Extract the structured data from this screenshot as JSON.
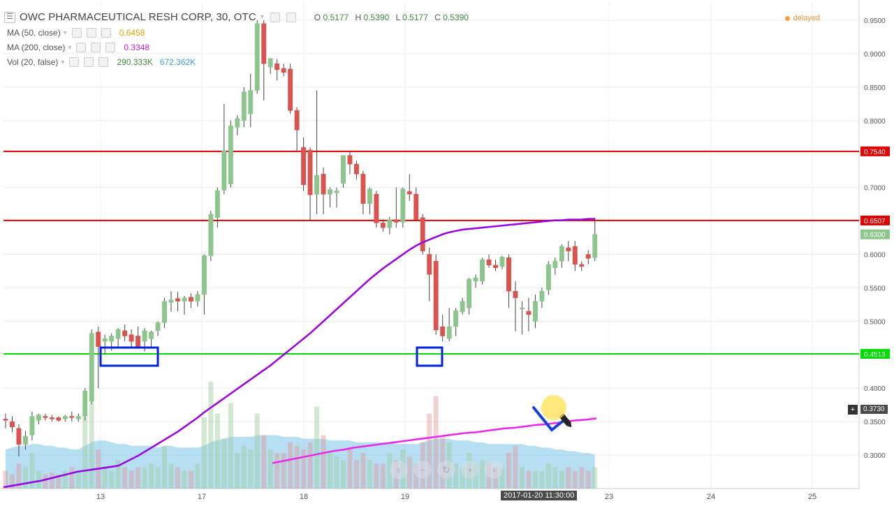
{
  "header": {
    "title": "OWC PHARMACEUTICAL RESH CORP, 30, OTC",
    "ohlc": [
      {
        "label": "O",
        "value": "0.5177"
      },
      {
        "label": "H",
        "value": "0.5390"
      },
      {
        "label": "L",
        "value": "0.5177"
      },
      {
        "label": "C",
        "value": "0.5390"
      }
    ],
    "status": "delayed"
  },
  "indicators": [
    {
      "name": "MA (50, close)",
      "value": "0.6458",
      "color": "#e6a000"
    },
    {
      "name": "MA (200, close)",
      "value": "0.3348",
      "color": "#d020d0"
    },
    {
      "name": "Vol (20, false)",
      "value": "290.333K",
      "value2": "672.362K",
      "color": "#3c8b3c",
      "color2": "#3aa0d8"
    }
  ],
  "crosshair": {
    "time": "2017-01-20 11:30:00",
    "price": "0.3730"
  },
  "nav_icons": [
    "minus-icon",
    "zoom-out-icon",
    "reset-icon",
    "plus-icon",
    "forward-icon"
  ],
  "colors": {
    "up": "#8cc68c",
    "down": "#d9534f",
    "resistance": "#e00000",
    "support": "#00dd00",
    "ma_purple": "#9a00e6",
    "ma_magenta": "#ee22ee",
    "box": "#0022dd",
    "volume_area": "#7cc4ea"
  },
  "chart_data": {
    "type": "candlestick",
    "x_ticks": [
      "13",
      "17",
      "18",
      "19",
      "23",
      "24",
      "25"
    ],
    "y_ticks": [
      "0.9500",
      "0.9000",
      "0.8500",
      "0.8000",
      "0.7000",
      "0.6000",
      "0.5500",
      "0.5000",
      "0.4000",
      "0.3500",
      "0.3000"
    ],
    "ylim": [
      0.25,
      0.975
    ],
    "horizontal_lines": [
      {
        "price": 0.754,
        "label": "0.7540",
        "color": "#e00000"
      },
      {
        "price": 0.6507,
        "label": "0.6507",
        "color": "#e00000"
      },
      {
        "price": 0.4513,
        "label": "0.4513",
        "color": "#00dd00"
      }
    ],
    "last_price": {
      "price": 0.63,
      "label": "0.6300"
    },
    "candles": [
      {
        "o": 0.354,
        "h": 0.362,
        "l": 0.34,
        "c": 0.352
      },
      {
        "o": 0.35,
        "h": 0.358,
        "l": 0.334,
        "c": 0.342
      },
      {
        "o": 0.34,
        "h": 0.346,
        "l": 0.298,
        "c": 0.316
      },
      {
        "o": 0.316,
        "h": 0.336,
        "l": 0.308,
        "c": 0.328
      },
      {
        "o": 0.33,
        "h": 0.365,
        "l": 0.322,
        "c": 0.358
      },
      {
        "o": 0.352,
        "h": 0.362,
        "l": 0.346,
        "c": 0.36
      },
      {
        "o": 0.358,
        "h": 0.362,
        "l": 0.352,
        "c": 0.356
      },
      {
        "o": 0.356,
        "h": 0.36,
        "l": 0.35,
        "c": 0.354
      },
      {
        "o": 0.356,
        "h": 0.358,
        "l": 0.35,
        "c": 0.352
      },
      {
        "o": 0.354,
        "h": 0.36,
        "l": 0.35,
        "c": 0.358
      },
      {
        "o": 0.358,
        "h": 0.365,
        "l": 0.35,
        "c": 0.356
      },
      {
        "o": 0.354,
        "h": 0.362,
        "l": 0.35,
        "c": 0.358
      },
      {
        "o": 0.358,
        "h": 0.4,
        "l": 0.352,
        "c": 0.396
      },
      {
        "o": 0.38,
        "h": 0.488,
        "l": 0.376,
        "c": 0.482
      },
      {
        "o": 0.484,
        "h": 0.492,
        "l": 0.4,
        "c": 0.462
      },
      {
        "o": 0.47,
        "h": 0.48,
        "l": 0.45,
        "c": 0.474
      },
      {
        "o": 0.47,
        "h": 0.482,
        "l": 0.456,
        "c": 0.478
      },
      {
        "o": 0.474,
        "h": 0.49,
        "l": 0.462,
        "c": 0.488
      },
      {
        "o": 0.486,
        "h": 0.495,
        "l": 0.47,
        "c": 0.478
      },
      {
        "o": 0.48,
        "h": 0.488,
        "l": 0.462,
        "c": 0.47
      },
      {
        "o": 0.478,
        "h": 0.492,
        "l": 0.46,
        "c": 0.462
      },
      {
        "o": 0.47,
        "h": 0.49,
        "l": 0.455,
        "c": 0.486
      },
      {
        "o": 0.474,
        "h": 0.486,
        "l": 0.46,
        "c": 0.484
      },
      {
        "o": 0.486,
        "h": 0.5,
        "l": 0.478,
        "c": 0.498
      },
      {
        "o": 0.498,
        "h": 0.535,
        "l": 0.49,
        "c": 0.53
      },
      {
        "o": 0.528,
        "h": 0.545,
        "l": 0.514,
        "c": 0.532
      },
      {
        "o": 0.534,
        "h": 0.544,
        "l": 0.515,
        "c": 0.53
      },
      {
        "o": 0.53,
        "h": 0.538,
        "l": 0.51,
        "c": 0.535
      },
      {
        "o": 0.536,
        "h": 0.542,
        "l": 0.52,
        "c": 0.53
      },
      {
        "o": 0.53,
        "h": 0.545,
        "l": 0.522,
        "c": 0.54
      },
      {
        "o": 0.54,
        "h": 0.6,
        "l": 0.51,
        "c": 0.598
      },
      {
        "o": 0.598,
        "h": 0.665,
        "l": 0.59,
        "c": 0.66
      },
      {
        "o": 0.655,
        "h": 0.7,
        "l": 0.64,
        "c": 0.695
      },
      {
        "o": 0.696,
        "h": 0.825,
        "l": 0.69,
        "c": 0.755
      },
      {
        "o": 0.705,
        "h": 0.8,
        "l": 0.7,
        "c": 0.792
      },
      {
        "o": 0.79,
        "h": 0.808,
        "l": 0.778,
        "c": 0.803
      },
      {
        "o": 0.8,
        "h": 0.85,
        "l": 0.79,
        "c": 0.843
      },
      {
        "o": 0.81,
        "h": 0.87,
        "l": 0.79,
        "c": 0.845
      },
      {
        "o": 0.845,
        "h": 0.95,
        "l": 0.84,
        "c": 0.945
      },
      {
        "o": 0.945,
        "h": 0.95,
        "l": 0.83,
        "c": 0.885
      },
      {
        "o": 0.88,
        "h": 0.888,
        "l": 0.87,
        "c": 0.893
      },
      {
        "o": 0.885,
        "h": 0.892,
        "l": 0.86,
        "c": 0.876
      },
      {
        "o": 0.878,
        "h": 0.885,
        "l": 0.866,
        "c": 0.872
      },
      {
        "o": 0.877,
        "h": 0.885,
        "l": 0.81,
        "c": 0.815
      },
      {
        "o": 0.815,
        "h": 0.82,
        "l": 0.755,
        "c": 0.786
      },
      {
        "o": 0.76,
        "h": 0.775,
        "l": 0.695,
        "c": 0.704
      },
      {
        "o": 0.756,
        "h": 0.76,
        "l": 0.65,
        "c": 0.689
      },
      {
        "o": 0.69,
        "h": 0.845,
        "l": 0.66,
        "c": 0.718
      },
      {
        "o": 0.72,
        "h": 0.73,
        "l": 0.66,
        "c": 0.69
      },
      {
        "o": 0.69,
        "h": 0.7,
        "l": 0.67,
        "c": 0.697
      },
      {
        "o": 0.692,
        "h": 0.7,
        "l": 0.67,
        "c": 0.695
      },
      {
        "o": 0.706,
        "h": 0.745,
        "l": 0.7,
        "c": 0.748
      },
      {
        "o": 0.748,
        "h": 0.755,
        "l": 0.72,
        "c": 0.735
      },
      {
        "o": 0.735,
        "h": 0.74,
        "l": 0.712,
        "c": 0.72
      },
      {
        "o": 0.72,
        "h": 0.725,
        "l": 0.66,
        "c": 0.676
      },
      {
        "o": 0.676,
        "h": 0.7,
        "l": 0.66,
        "c": 0.698
      },
      {
        "o": 0.69,
        "h": 0.695,
        "l": 0.64,
        "c": 0.647
      },
      {
        "o": 0.647,
        "h": 0.652,
        "l": 0.634,
        "c": 0.64
      },
      {
        "o": 0.64,
        "h": 0.656,
        "l": 0.63,
        "c": 0.652
      },
      {
        "o": 0.652,
        "h": 0.7,
        "l": 0.64,
        "c": 0.648
      },
      {
        "o": 0.648,
        "h": 0.7,
        "l": 0.64,
        "c": 0.698
      },
      {
        "o": 0.694,
        "h": 0.72,
        "l": 0.68,
        "c": 0.69
      },
      {
        "o": 0.69,
        "h": 0.7,
        "l": 0.65,
        "c": 0.652
      },
      {
        "o": 0.655,
        "h": 0.66,
        "l": 0.6,
        "c": 0.605
      },
      {
        "o": 0.6,
        "h": 0.61,
        "l": 0.53,
        "c": 0.57
      },
      {
        "o": 0.59,
        "h": 0.6,
        "l": 0.48,
        "c": 0.487
      },
      {
        "o": 0.492,
        "h": 0.51,
        "l": 0.47,
        "c": 0.478
      },
      {
        "o": 0.474,
        "h": 0.52,
        "l": 0.47,
        "c": 0.492
      },
      {
        "o": 0.492,
        "h": 0.52,
        "l": 0.478,
        "c": 0.516
      },
      {
        "o": 0.514,
        "h": 0.535,
        "l": 0.51,
        "c": 0.53
      },
      {
        "o": 0.52,
        "h": 0.565,
        "l": 0.51,
        "c": 0.563
      },
      {
        "o": 0.56,
        "h": 0.57,
        "l": 0.55,
        "c": 0.565
      },
      {
        "o": 0.56,
        "h": 0.595,
        "l": 0.555,
        "c": 0.592
      },
      {
        "o": 0.592,
        "h": 0.6,
        "l": 0.58,
        "c": 0.584
      },
      {
        "o": 0.584,
        "h": 0.592,
        "l": 0.575,
        "c": 0.58
      },
      {
        "o": 0.582,
        "h": 0.598,
        "l": 0.578,
        "c": 0.596
      },
      {
        "o": 0.595,
        "h": 0.6,
        "l": 0.52,
        "c": 0.545
      },
      {
        "o": 0.545,
        "h": 0.56,
        "l": 0.485,
        "c": 0.535
      },
      {
        "o": 0.52,
        "h": 0.53,
        "l": 0.48,
        "c": 0.52
      },
      {
        "o": 0.515,
        "h": 0.535,
        "l": 0.485,
        "c": 0.51
      },
      {
        "o": 0.5,
        "h": 0.54,
        "l": 0.49,
        "c": 0.53
      },
      {
        "o": 0.53,
        "h": 0.55,
        "l": 0.52,
        "c": 0.545
      },
      {
        "o": 0.547,
        "h": 0.59,
        "l": 0.54,
        "c": 0.585
      },
      {
        "o": 0.58,
        "h": 0.595,
        "l": 0.57,
        "c": 0.59
      },
      {
        "o": 0.59,
        "h": 0.615,
        "l": 0.58,
        "c": 0.612
      },
      {
        "o": 0.61,
        "h": 0.62,
        "l": 0.59,
        "c": 0.605
      },
      {
        "o": 0.612,
        "h": 0.62,
        "l": 0.575,
        "c": 0.585
      },
      {
        "o": 0.585,
        "h": 0.59,
        "l": 0.575,
        "c": 0.582
      },
      {
        "o": 0.6,
        "h": 0.606,
        "l": 0.585,
        "c": 0.594
      },
      {
        "o": 0.595,
        "h": 0.655,
        "l": 0.59,
        "c": 0.63
      }
    ],
    "volume": [
      0.1,
      0.08,
      0.14,
      0.12,
      0.2,
      0.1,
      0.08,
      0.09,
      0.08,
      0.1,
      0.12,
      0.1,
      0.4,
      0.48,
      0.22,
      0.12,
      0.1,
      0.16,
      0.12,
      0.1,
      0.12,
      0.12,
      0.14,
      0.12,
      0.24,
      0.14,
      0.12,
      0.1,
      0.1,
      0.14,
      0.4,
      0.6,
      0.42,
      0.28,
      0.48,
      0.2,
      0.24,
      0.22,
      0.42,
      0.3,
      0.22,
      0.2,
      0.2,
      0.26,
      0.24,
      0.22,
      0.26,
      0.46,
      0.3,
      0.2,
      0.18,
      0.16,
      0.22,
      0.16,
      0.2,
      0.16,
      0.14,
      0.14,
      0.2,
      0.16,
      0.22,
      0.18,
      0.14,
      0.26,
      0.42,
      0.52,
      0.3,
      0.26,
      0.14,
      0.12,
      0.2,
      0.14,
      0.16,
      0.14,
      0.12,
      0.12,
      0.2,
      0.24,
      0.12,
      0.1,
      0.1,
      0.1,
      0.14,
      0.12,
      0.1,
      0.12,
      0.1,
      0.12,
      0.1,
      0.12
    ],
    "volume_avg": [
      0.22,
      0.23,
      0.24,
      0.24,
      0.25,
      0.25,
      0.24,
      0.24,
      0.23,
      0.23,
      0.22,
      0.22,
      0.24,
      0.26,
      0.27,
      0.27,
      0.26,
      0.25,
      0.25,
      0.24,
      0.24,
      0.24,
      0.24,
      0.23,
      0.24,
      0.24,
      0.23,
      0.23,
      0.23,
      0.23,
      0.24,
      0.26,
      0.27,
      0.28,
      0.29,
      0.29,
      0.29,
      0.29,
      0.3,
      0.3,
      0.3,
      0.3,
      0.29,
      0.29,
      0.29,
      0.28,
      0.28,
      0.28,
      0.28,
      0.27,
      0.27,
      0.27,
      0.27,
      0.26,
      0.26,
      0.26,
      0.26,
      0.26,
      0.26,
      0.25,
      0.25,
      0.25,
      0.25,
      0.26,
      0.27,
      0.28,
      0.28,
      0.28,
      0.27,
      0.27,
      0.27,
      0.26,
      0.26,
      0.25,
      0.25,
      0.25,
      0.25,
      0.25,
      0.25,
      0.24,
      0.24,
      0.23,
      0.23,
      0.22,
      0.22,
      0.21,
      0.21,
      0.2,
      0.2,
      0.19
    ],
    "ma50": [
      0.284,
      0.289,
      0.294,
      0.299,
      0.305,
      0.311,
      0.317,
      0.323,
      0.329,
      0.335,
      0.342,
      0.349,
      0.356,
      0.364,
      0.371,
      0.378,
      0.385,
      0.392,
      0.399,
      0.406,
      0.413,
      0.42,
      0.427,
      0.434,
      0.442,
      0.45,
      0.458,
      0.466,
      0.474,
      0.482,
      0.491,
      0.5,
      0.509,
      0.518,
      0.527,
      0.536,
      0.545,
      0.554,
      0.563,
      0.571,
      0.579,
      0.586,
      0.593,
      0.6,
      0.607,
      0.613,
      0.618,
      0.622,
      0.626,
      0.63,
      0.633,
      0.635,
      0.637,
      0.638,
      0.639,
      0.64,
      0.641,
      0.642,
      0.643,
      0.644,
      0.645,
      0.646,
      0.647,
      0.648,
      0.649,
      0.65,
      0.651,
      0.651,
      0.652,
      0.652,
      0.652,
      0.653,
      0.653
    ],
    "ma200": [
      0.288,
      0.291,
      0.294,
      0.297,
      0.3,
      0.303,
      0.306,
      0.308,
      0.311,
      0.313,
      0.315,
      0.317,
      0.319,
      0.321,
      0.323,
      0.325,
      0.327,
      0.329,
      0.331,
      0.333,
      0.334,
      0.336,
      0.338,
      0.34,
      0.341,
      0.343,
      0.345,
      0.346,
      0.348,
      0.35,
      0.352,
      0.353,
      0.355
    ]
  }
}
